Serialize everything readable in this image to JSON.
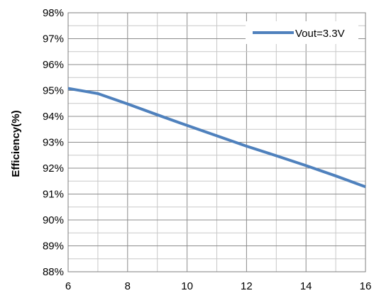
{
  "chart_data": {
    "type": "line",
    "ylabel": "Efficiency(%)",
    "xlabel": "",
    "xlim": [
      6,
      16
    ],
    "ylim": [
      88,
      98
    ],
    "x_ticks": [
      6,
      8,
      10,
      12,
      14,
      16
    ],
    "y_ticks": [
      88,
      89,
      90,
      91,
      92,
      93,
      94,
      95,
      96,
      97,
      98
    ],
    "y_tick_suffix": "%",
    "grid": true,
    "legend_position": "top-right",
    "series": [
      {
        "name": "Vout=3.3V",
        "color": "#4f81bd",
        "x": [
          6,
          7,
          8,
          9,
          10,
          11,
          12,
          13,
          14,
          15,
          16
        ],
        "y": [
          95.08,
          94.88,
          94.48,
          94.06,
          93.65,
          93.25,
          92.85,
          92.48,
          92.1,
          91.7,
          91.28
        ]
      }
    ]
  }
}
